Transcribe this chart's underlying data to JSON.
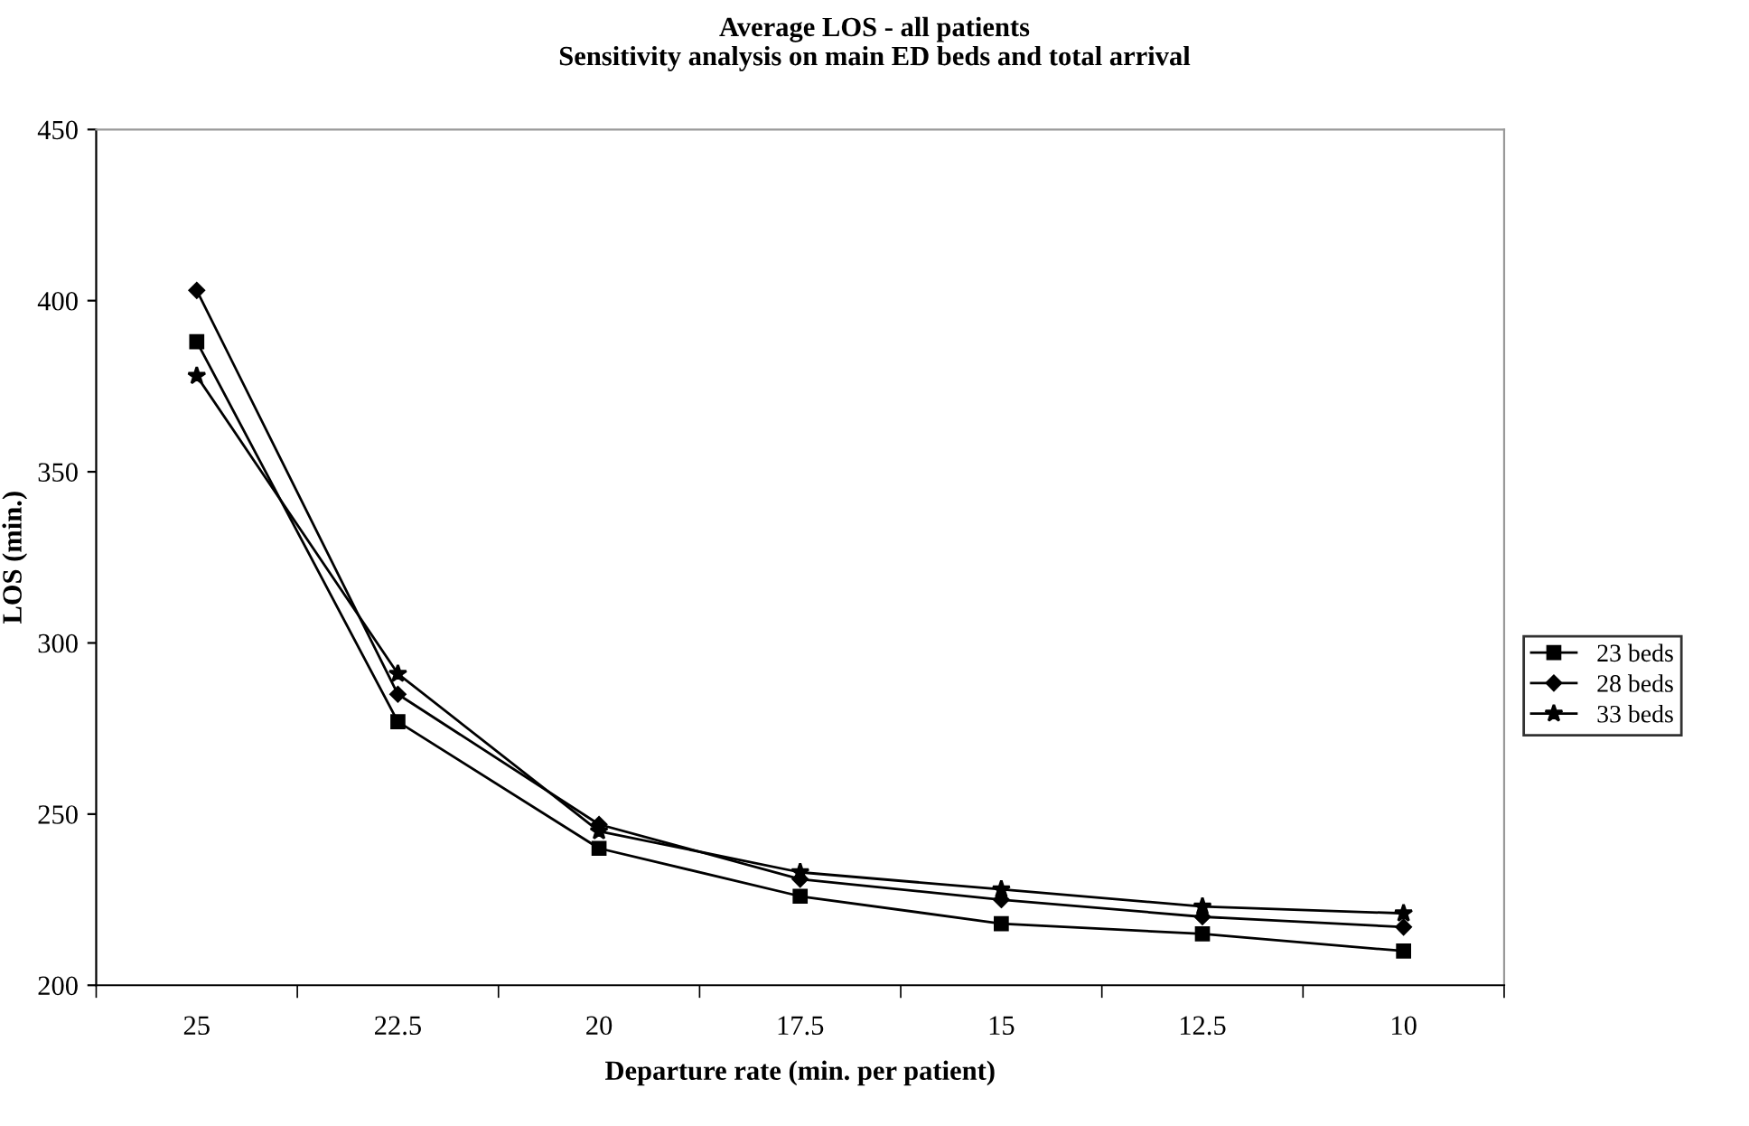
{
  "chart_data": {
    "type": "line",
    "title": "Average LOS - all patients",
    "subtitle": "Sensitivity analysis on main ED beds and total arrival",
    "xlabel": "Departure rate (min. per patient)",
    "ylabel": "LOS (min.)",
    "categories": [
      "25",
      "22.5",
      "20",
      "17.5",
      "15",
      "12.5",
      "10"
    ],
    "series": [
      {
        "name": "23 beds",
        "color": "#000000",
        "marker": "square",
        "values": [
          388,
          277,
          240,
          226,
          218,
          215,
          210
        ]
      },
      {
        "name": "28 beds",
        "color": "#000000",
        "marker": "diamond",
        "values": [
          403,
          285,
          247,
          231,
          225,
          220,
          217
        ]
      },
      {
        "name": "33 beds",
        "color": "#000000",
        "marker": "star",
        "values": [
          378,
          291,
          245,
          233,
          228,
          223,
          221
        ]
      }
    ],
    "ylim": [
      200,
      450
    ],
    "yticks": [
      200,
      250,
      300,
      350,
      400,
      450
    ],
    "grid": false,
    "legend": "right",
    "line_style": "solid"
  }
}
